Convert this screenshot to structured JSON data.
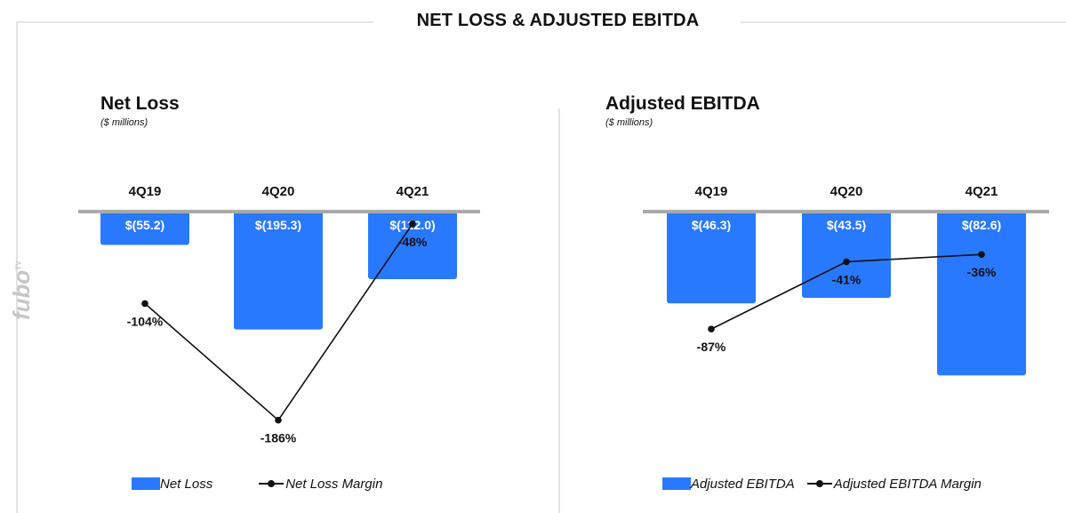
{
  "title": "NET LOSS & ADJUSTED EBITDA",
  "brand": {
    "name": "fubo",
    "mark": "TV"
  },
  "colors": {
    "bar": "#2979ff",
    "line": "#111111",
    "axis": "#aaaaaa",
    "frame": "#e3e3e3",
    "brand": "#c7c7c7"
  },
  "chart_data": [
    {
      "type": "bar",
      "title": "Net Loss",
      "subtitle": "($ millions)",
      "categories": [
        "4Q19",
        "4Q20",
        "4Q21"
      ],
      "series": [
        {
          "name": "Net Loss",
          "type": "bar",
          "values": [
            -55.2,
            -195.3,
            -112.0
          ],
          "labels": [
            "$(55.2)",
            "$(195.3)",
            "$(112.0)"
          ]
        },
        {
          "name": "Net Loss Margin",
          "type": "line",
          "values": [
            -104,
            -186,
            -48
          ],
          "labels": [
            "-104%",
            "-186%",
            "-48%"
          ]
        }
      ],
      "legend": {
        "position": "bottom",
        "entries": [
          "Net Loss",
          "Net Loss Margin"
        ]
      }
    },
    {
      "type": "bar",
      "title": "Adjusted EBITDA",
      "subtitle": "($ millions)",
      "categories": [
        "4Q19",
        "4Q20",
        "4Q21"
      ],
      "series": [
        {
          "name": "Adjusted EBITDA",
          "type": "bar",
          "values": [
            -46.3,
            -43.5,
            -82.6
          ],
          "labels": [
            "$(46.3)",
            "$(43.5)",
            "$(82.6)"
          ]
        },
        {
          "name": "Adjusted EBITDA Margin",
          "type": "line",
          "values": [
            -87,
            -41,
            -36
          ],
          "labels": [
            "-87%",
            "-41%",
            "-36%"
          ]
        }
      ],
      "legend": {
        "position": "bottom",
        "entries": [
          "Adjusted EBITDA",
          "Adjusted EBITDA Margin"
        ]
      }
    }
  ]
}
